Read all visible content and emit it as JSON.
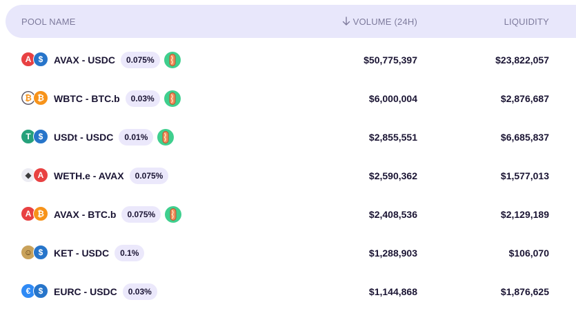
{
  "header": {
    "pool_name": "POOL NAME",
    "volume": "VOLUME (24H)",
    "liquidity": "LIQUIDITY"
  },
  "pools": [
    {
      "pair": "AVAX - USDC",
      "fee": "0.075%",
      "volume": "$50,775,397",
      "liquidity": "$23,822,057",
      "boosted": true,
      "coin_a": "avax",
      "coin_b": "usdc"
    },
    {
      "pair": "WBTC - BTC.b",
      "fee": "0.03%",
      "volume": "$6,000,004",
      "liquidity": "$2,876,687",
      "boosted": true,
      "coin_a": "wbtc",
      "coin_b": "btc"
    },
    {
      "pair": "USDt - USDC",
      "fee": "0.01%",
      "volume": "$2,855,551",
      "liquidity": "$6,685,837",
      "boosted": true,
      "coin_a": "usdt",
      "coin_b": "usdc"
    },
    {
      "pair": "WETH.e - AVAX",
      "fee": "0.075%",
      "volume": "$2,590,362",
      "liquidity": "$1,577,013",
      "boosted": false,
      "coin_a": "eth",
      "coin_b": "avax"
    },
    {
      "pair": "AVAX - BTC.b",
      "fee": "0.075%",
      "volume": "$2,408,536",
      "liquidity": "$2,129,189",
      "boosted": true,
      "coin_a": "avax",
      "coin_b": "btc"
    },
    {
      "pair": "KET - USDC",
      "fee": "0.1%",
      "volume": "$1,288,903",
      "liquidity": "$106,070",
      "boosted": false,
      "coin_a": "ket",
      "coin_b": "usdc"
    },
    {
      "pair": "EURC - USDC",
      "fee": "0.03%",
      "volume": "$1,144,868",
      "liquidity": "$1,876,625",
      "boosted": false,
      "coin_a": "eurc",
      "coin_b": "usdc"
    }
  ],
  "colors": {
    "header_bg": "#e8e7fb",
    "fee_bg": "#ebe8fb",
    "avax": "#e84142",
    "usdc": "#2775ca",
    "btc": "#f7931a",
    "usdt": "#26a17b",
    "boost_green": "#3fcf8e"
  }
}
